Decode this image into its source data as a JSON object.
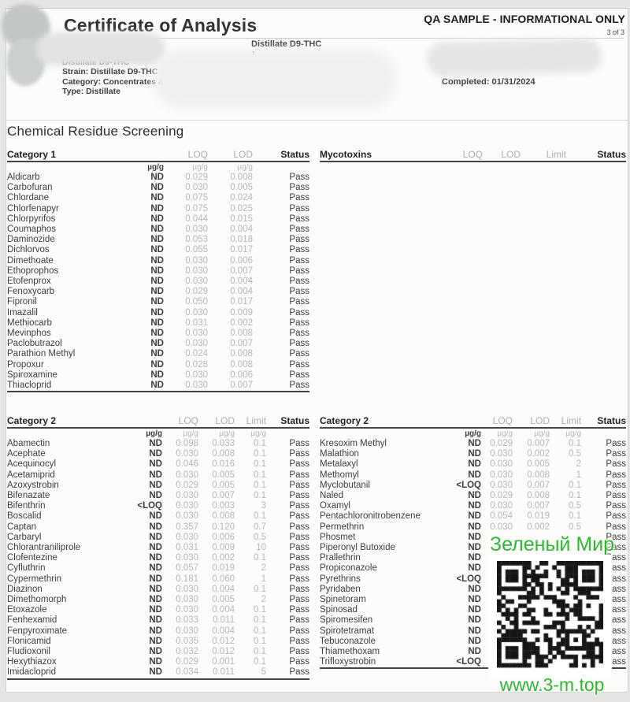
{
  "header": {
    "title": "Certificate of Analysis",
    "qa_notice": "QA SAMPLE - INFORMATIONAL ONLY",
    "page_indicator": "3 of 3"
  },
  "info": {
    "product": "Distillate D9-THC",
    "strain": "Strain: Distillate D9-THC",
    "category": "Category: Concentrates & Extracts",
    "type": "Type: Distillate",
    "center_product": "Distillate D9-THC",
    "completed": "Completed: 01/31/2024"
  },
  "section": {
    "title": "Chemical Residue Screening"
  },
  "tables": {
    "category1": {
      "title": "Category 1",
      "col_labels": [
        "LOQ",
        "LOD",
        "Status"
      ],
      "units": [
        "µg/g",
        "µg/g",
        "µg/g"
      ],
      "rows": [
        [
          "Aldicarb",
          "ND",
          "0.029",
          "0.008",
          "Pass"
        ],
        [
          "Carbofuran",
          "ND",
          "0.030",
          "0.005",
          "Pass"
        ],
        [
          "Chlordane",
          "ND",
          "0.075",
          "0.024",
          "Pass"
        ],
        [
          "Chlorfenapyr",
          "ND",
          "0.075",
          "0.025",
          "Pass"
        ],
        [
          "Chlorpyrifos",
          "ND",
          "0.044",
          "0.015",
          "Pass"
        ],
        [
          "Coumaphos",
          "ND",
          "0.030",
          "0.004",
          "Pass"
        ],
        [
          "Daminozide",
          "ND",
          "0.053",
          "0.018",
          "Pass"
        ],
        [
          "Dichlorvos",
          "ND",
          "0.055",
          "0.017",
          "Pass"
        ],
        [
          "Dimethoate",
          "ND",
          "0.030",
          "0.006",
          "Pass"
        ],
        [
          "Ethoprophos",
          "ND",
          "0.030",
          "0.007",
          "Pass"
        ],
        [
          "Etofenprox",
          "ND",
          "0.030",
          "0.004",
          "Pass"
        ],
        [
          "Fenoxycarb",
          "ND",
          "0.029",
          "0.004",
          "Pass"
        ],
        [
          "Fipronil",
          "ND",
          "0.050",
          "0.017",
          "Pass"
        ],
        [
          "Imazalil",
          "ND",
          "0.030",
          "0.009",
          "Pass"
        ],
        [
          "Methiocarb",
          "ND",
          "0.031",
          "0.002",
          "Pass"
        ],
        [
          "Mevinphos",
          "ND",
          "0.030",
          "0.008",
          "Pass"
        ],
        [
          "Paclobutrazol",
          "ND",
          "0.030",
          "0.007",
          "Pass"
        ],
        [
          "Parathion Methyl",
          "ND",
          "0.024",
          "0.008",
          "Pass"
        ],
        [
          "Propoxur",
          "ND",
          "0.028",
          "0.008",
          "Pass"
        ],
        [
          "Spiroxamine",
          "ND",
          "0.030",
          "0.006",
          "Pass"
        ],
        [
          "Thiacloprid",
          "ND",
          "0.030",
          "0.007",
          "Pass"
        ]
      ]
    },
    "mycotoxins": {
      "title": "Mycotoxins",
      "col_labels": [
        "LOQ",
        "LOD",
        "Limit",
        "Status"
      ],
      "units": [],
      "rows": []
    },
    "category2_left": {
      "title": "Category 2",
      "col_labels": [
        "LOQ",
        "LOD",
        "Limit",
        "Status"
      ],
      "units": [
        "µg/g",
        "µg/g",
        "µg/g",
        "µg/g"
      ],
      "rows": [
        [
          "Abamectin",
          "ND",
          "0.098",
          "0.033",
          "0.1",
          "Pass"
        ],
        [
          "Acephate",
          "ND",
          "0.030",
          "0.008",
          "0.1",
          "Pass"
        ],
        [
          "Acequinocyl",
          "ND",
          "0.046",
          "0.016",
          "0.1",
          "Pass"
        ],
        [
          "Acetamiprid",
          "ND",
          "0.030",
          "0.005",
          "0.1",
          "Pass"
        ],
        [
          "Azoxystrobin",
          "ND",
          "0.029",
          "0.005",
          "0.1",
          "Pass"
        ],
        [
          "Bifenazate",
          "ND",
          "0.030",
          "0.007",
          "0.1",
          "Pass"
        ],
        [
          "Bifenthrin",
          "<LOQ",
          "0.030",
          "0.003",
          "3",
          "Pass"
        ],
        [
          "Boscalid",
          "ND",
          "0.030",
          "0.008",
          "0.1",
          "Pass"
        ],
        [
          "Captan",
          "ND",
          "0.357",
          "0.120",
          "0.7",
          "Pass"
        ],
        [
          "Carbaryl",
          "ND",
          "0.030",
          "0.006",
          "0.5",
          "Pass"
        ],
        [
          "Chlorantraniliprole",
          "ND",
          "0.031",
          "0.009",
          "10",
          "Pass"
        ],
        [
          "Clofentezine",
          "ND",
          "0.030",
          "0.002",
          "0.1",
          "Pass"
        ],
        [
          "Cyfluthrin",
          "ND",
          "0.057",
          "0.019",
          "2",
          "Pass"
        ],
        [
          "Cypermethrin",
          "ND",
          "0.181",
          "0.060",
          "1",
          "Pass"
        ],
        [
          "Diazinon",
          "ND",
          "0.030",
          "0.004",
          "0.1",
          "Pass"
        ],
        [
          "Dimethomorph",
          "ND",
          "0.030",
          "0.005",
          "2",
          "Pass"
        ],
        [
          "Etoxazole",
          "ND",
          "0.030",
          "0.004",
          "0.1",
          "Pass"
        ],
        [
          "Fenhexamid",
          "ND",
          "0.033",
          "0.011",
          "0.1",
          "Pass"
        ],
        [
          "Fenpyroximate",
          "ND",
          "0.030",
          "0.004",
          "0.1",
          "Pass"
        ],
        [
          "Flonicamid",
          "ND",
          "0.035",
          "0.012",
          "0.1",
          "Pass"
        ],
        [
          "Fludioxonil",
          "ND",
          "0.032",
          "0.012",
          "0.1",
          "Pass"
        ],
        [
          "Hexythiazox",
          "ND",
          "0.029",
          "0.001",
          "0.1",
          "Pass"
        ],
        [
          "Imidacloprid",
          "ND",
          "0.034",
          "0.011",
          "5",
          "Pass"
        ]
      ]
    },
    "category2_right": {
      "title": "Category 2",
      "col_labels": [
        "LOQ",
        "LOD",
        "Limit",
        "Status"
      ],
      "units": [
        "µg/g",
        "µg/g",
        "µg/g",
        "µg/g"
      ],
      "rows": [
        [
          "Kresoxim Methyl",
          "ND",
          "0.029",
          "0.007",
          "0.1",
          "Pass"
        ],
        [
          "Malathion",
          "ND",
          "0.030",
          "0.002",
          "0.5",
          "Pass"
        ],
        [
          "Metalaxyl",
          "ND",
          "0.030",
          "0.005",
          "2",
          "Pass"
        ],
        [
          "Methomyl",
          "ND",
          "0.030",
          "0.008",
          "1",
          "Pass"
        ],
        [
          "Myclobutanil",
          "<LOQ",
          "0.030",
          "0.007",
          "0.1",
          "Pass"
        ],
        [
          "Naled",
          "ND",
          "0.029",
          "0.008",
          "0.1",
          "Pass"
        ],
        [
          "Oxamyl",
          "ND",
          "0.030",
          "0.007",
          "0.5",
          "Pass"
        ],
        [
          "Pentachloronitrobenzene",
          "ND",
          "0.054",
          "0.019",
          "0.1",
          "Pass"
        ],
        [
          "Permethrin",
          "ND",
          "0.030",
          "0.002",
          "0.5",
          "Pass"
        ],
        [
          "Phosmet",
          "ND",
          "",
          "",
          "",
          "Pass"
        ],
        [
          "Piperonyl Butoxide",
          "ND",
          "",
          "",
          "",
          "Pass"
        ],
        [
          "Prallethrin",
          "ND",
          "",
          "",
          "",
          "Pass"
        ],
        [
          "Propiconazole",
          "ND",
          "",
          "",
          "",
          "Pass"
        ],
        [
          "Pyrethrins",
          "<LOQ",
          "",
          "",
          "",
          "Pass"
        ],
        [
          "Pyridaben",
          "ND",
          "",
          "",
          "",
          "Pass"
        ],
        [
          "Spinetoram",
          "ND",
          "",
          "",
          "",
          "Pass"
        ],
        [
          "Spinosad",
          "ND",
          "",
          "",
          "",
          "Pass"
        ],
        [
          "Spiromesifen",
          "ND",
          "",
          "",
          "",
          "Pass"
        ],
        [
          "Spirotetramat",
          "ND",
          "",
          "",
          "",
          "Pass"
        ],
        [
          "Tebuconazole",
          "ND",
          "",
          "",
          "",
          "Pass"
        ],
        [
          "Thiamethoxam",
          "ND",
          "",
          "",
          "",
          "Pass"
        ],
        [
          "Trifloxystrobin",
          "<LOQ",
          "",
          "",
          "",
          "Pass"
        ]
      ]
    }
  },
  "overlay": {
    "title": "Зеленый Мир",
    "url": "www.3-m.top",
    "green": "#2eb82e"
  }
}
